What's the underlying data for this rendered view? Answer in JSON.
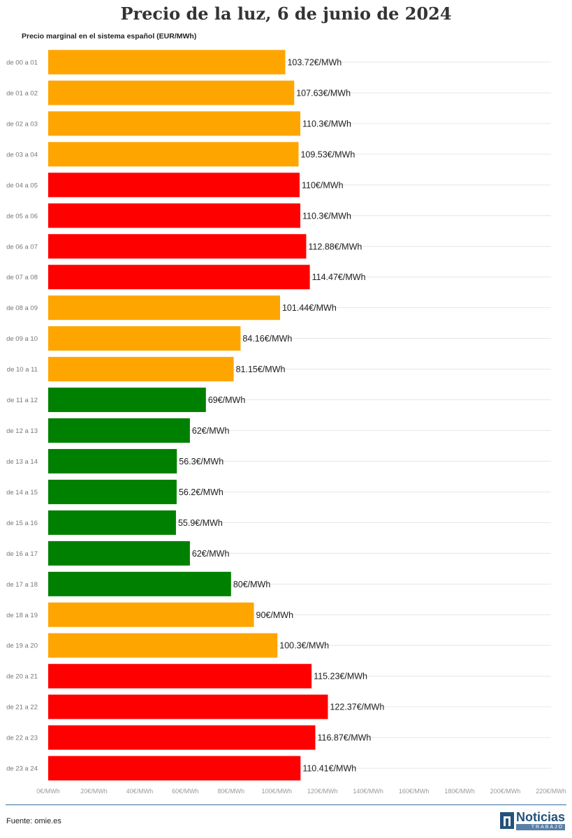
{
  "page": {
    "source_text": "Fuente: omie.es",
    "logo": {
      "name": "Noticias",
      "sub": "TRABAJO",
      "icon": "noticias-trabajo-logo-icon"
    }
  },
  "chart_data": {
    "type": "bar",
    "orientation": "horizontal",
    "title": "Precio de la luz, 6 de junio de 2024",
    "subtitle": "Precio marginal en el sistema español (EUR/MWh)",
    "xlabel": "",
    "ylabel": "",
    "xlim": [
      0,
      220
    ],
    "ticks": [
      {
        "value": 0,
        "label": "0€/MWh"
      },
      {
        "value": 20,
        "label": "20€/MWh"
      },
      {
        "value": 40,
        "label": "40€/MWh"
      },
      {
        "value": 60,
        "label": "60€/MWh"
      },
      {
        "value": 80,
        "label": "80€/MWh"
      },
      {
        "value": 100,
        "label": "100€/MWh"
      },
      {
        "value": 120,
        "label": "120€/MWh"
      },
      {
        "value": 140,
        "label": "140€/MWh"
      },
      {
        "value": 160,
        "label": "160€/MWh"
      },
      {
        "value": 180,
        "label": "180€/MWh"
      },
      {
        "value": 200,
        "label": "200€/MWh"
      },
      {
        "value": 220,
        "label": "220€/MWh"
      }
    ],
    "grid": true,
    "colors": {
      "orange": "#ffa500",
      "red": "#ff0000",
      "green": "#008000"
    },
    "categories": [
      "de 00 a 01",
      "de 01 a 02",
      "de 02 a 03",
      "de 03 a 04",
      "de 04 a 05",
      "de 05 a 06",
      "de 06 a 07",
      "de 07 a 08",
      "de 08 a 09",
      "de 09 a 10",
      "de 10 a 11",
      "de 11 a 12",
      "de 12 a 13",
      "de 13 a 14",
      "de 14 a 15",
      "de 15 a 16",
      "de 16 a 17",
      "de 17 a 18",
      "de 18 a 19",
      "de 19 a 20",
      "de 20 a 21",
      "de 21 a 22",
      "de 22 a 23",
      "de 23 a 24"
    ],
    "values": [
      103.72,
      107.63,
      110.3,
      109.53,
      110,
      110.3,
      112.88,
      114.47,
      101.44,
      84.16,
      81.15,
      69,
      62,
      56.3,
      56.2,
      55.9,
      62,
      80,
      90,
      100.3,
      115.23,
      122.37,
      116.87,
      110.41
    ],
    "labels": [
      "103.72€/MWh",
      "107.63€/MWh",
      "110.3€/MWh",
      "109.53€/MWh",
      "110€/MWh",
      "110.3€/MWh",
      "112.88€/MWh",
      "114.47€/MWh",
      "101.44€/MWh",
      "84.16€/MWh",
      "81.15€/MWh",
      "69€/MWh",
      "62€/MWh",
      "56.3€/MWh",
      "56.2€/MWh",
      "55.9€/MWh",
      "62€/MWh",
      "80€/MWh",
      "90€/MWh",
      "100.3€/MWh",
      "115.23€/MWh",
      "122.37€/MWh",
      "116.87€/MWh",
      "110.41€/MWh"
    ],
    "bar_colors": [
      "orange",
      "orange",
      "orange",
      "orange",
      "red",
      "red",
      "red",
      "red",
      "orange",
      "orange",
      "orange",
      "green",
      "green",
      "green",
      "green",
      "green",
      "green",
      "green",
      "orange",
      "orange",
      "red",
      "red",
      "red",
      "red"
    ]
  }
}
